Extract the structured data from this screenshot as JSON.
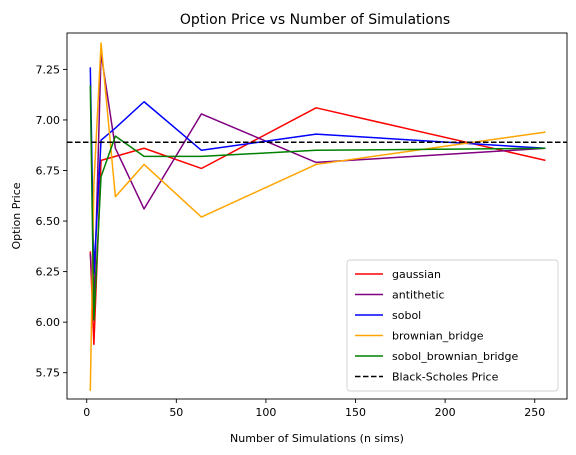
{
  "chart_data": {
    "type": "line",
    "title": "Option Price vs Number of Simulations",
    "xlabel": "Number of Simulations (n sims)",
    "ylabel": "Option Price",
    "xlim": [
      -11,
      268
    ],
    "ylim": [
      5.62,
      7.43
    ],
    "xticks": [
      0,
      50,
      100,
      150,
      200,
      250
    ],
    "yticks": [
      5.75,
      6.0,
      6.25,
      6.5,
      6.75,
      7.0,
      7.25
    ],
    "ytick_labels": [
      "5.75",
      "6.00",
      "6.25",
      "6.50",
      "6.75",
      "7.00",
      "7.25"
    ],
    "grid": false,
    "legend_position": "lower-right",
    "x": [
      2,
      4,
      8,
      16,
      32,
      64,
      128,
      256
    ],
    "series": [
      {
        "name": "gaussian",
        "color": "#ff0000",
        "values": [
          6.35,
          5.89,
          6.8,
          6.82,
          6.86,
          6.76,
          7.06,
          6.8
        ]
      },
      {
        "name": "antithetic",
        "color": "#800080",
        "values": [
          6.34,
          6.06,
          7.33,
          6.86,
          6.56,
          7.03,
          6.79,
          6.86
        ]
      },
      {
        "name": "sobol",
        "color": "#0000ff",
        "values": [
          7.26,
          6.24,
          6.9,
          6.96,
          7.09,
          6.85,
          6.93,
          6.86
        ]
      },
      {
        "name": "brownian_bridge",
        "color": "#ffa500",
        "values": [
          5.66,
          6.68,
          7.38,
          6.62,
          6.78,
          6.52,
          6.78,
          6.94
        ]
      },
      {
        "name": "sobol_brownian_bridge",
        "color": "#008000",
        "values": [
          7.17,
          6.01,
          6.72,
          6.92,
          6.82,
          6.82,
          6.85,
          6.86
        ]
      }
    ],
    "reference_line": {
      "name": "Black-Scholes Price",
      "color": "#000000",
      "value": 6.89,
      "style": "dashed"
    }
  }
}
